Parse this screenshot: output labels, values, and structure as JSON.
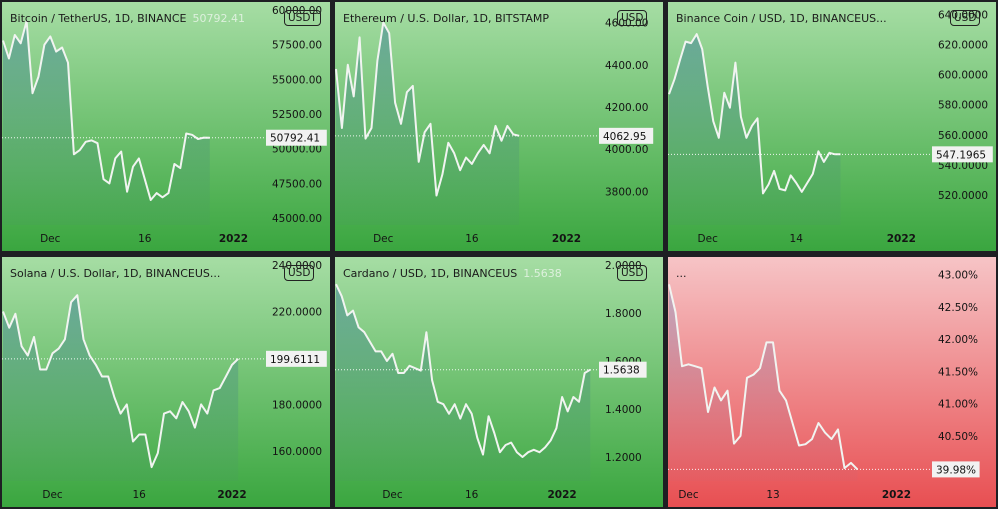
{
  "chart_data": [
    {
      "type": "area",
      "title": "Bitcoin / TetherUS, 1D, BINANCE",
      "price_label": "50792.41",
      "currency": "USDT",
      "current_tag": "50792.41",
      "theme": "green",
      "ylim": [
        44500,
        60000
      ],
      "yticks": [
        {
          "v": 60000,
          "l": "60000.00"
        },
        {
          "v": 57500,
          "l": "57500.00"
        },
        {
          "v": 55000,
          "l": "55000.00"
        },
        {
          "v": 52500,
          "l": "52500.00"
        },
        {
          "v": 50000,
          "l": "50000.00"
        },
        {
          "v": 47500,
          "l": "47500.00"
        },
        {
          "v": 45000,
          "l": "45000.00"
        }
      ],
      "xticks": [
        {
          "i": 8,
          "l": "Dec",
          "bold": false
        },
        {
          "i": 24,
          "l": "16",
          "bold": false
        },
        {
          "i": 39,
          "l": "2022",
          "bold": true
        }
      ],
      "n_slots": 45,
      "values": [
        57800,
        56500,
        58200,
        57600,
        59200,
        54000,
        55200,
        57500,
        58100,
        57000,
        57300,
        56200,
        49600,
        49900,
        50500,
        50600,
        50400,
        47800,
        47500,
        49300,
        49800,
        46900,
        48700,
        49300,
        47800,
        46300,
        46800,
        46500,
        46800,
        48900,
        48600,
        51100,
        51000,
        50700,
        50800,
        50792
      ]
    },
    {
      "type": "area",
      "title": "Ethereum / U.S. Dollar, 1D, BITSTAMP",
      "price_label": "",
      "currency": "USD",
      "current_tag": "4062.95",
      "theme": "green",
      "ylim": [
        3640,
        4660
      ],
      "yticks": [
        {
          "v": 4600,
          "l": "4600.00"
        },
        {
          "v": 4400,
          "l": "4400.00"
        },
        {
          "v": 4200,
          "l": "4200.00"
        },
        {
          "v": 4000,
          "l": "4000.00"
        },
        {
          "v": 3800,
          "l": "3800.00"
        }
      ],
      "xticks": [
        {
          "i": 8,
          "l": "Dec",
          "bold": false
        },
        {
          "i": 23,
          "l": "16",
          "bold": false
        },
        {
          "i": 39,
          "l": "2022",
          "bold": true
        }
      ],
      "n_slots": 45,
      "values": [
        4380,
        4100,
        4400,
        4250,
        4530,
        4050,
        4100,
        4420,
        4600,
        4550,
        4220,
        4120,
        4270,
        4300,
        3940,
        4080,
        4120,
        3780,
        3880,
        4030,
        3980,
        3900,
        3960,
        3930,
        3980,
        4020,
        3980,
        4110,
        4040,
        4110,
        4070,
        4063
      ]
    },
    {
      "type": "area",
      "title": "Binance Coin / USD, 1D, BINANCEUS...",
      "price_label": "",
      "currency": "USD",
      "current_tag": "547.1965",
      "theme": "green",
      "ylim": [
        500,
        643
      ],
      "yticks": [
        {
          "v": 640,
          "l": "640.0000"
        },
        {
          "v": 620,
          "l": "620.0000"
        },
        {
          "v": 600,
          "l": "600.0000"
        },
        {
          "v": 580,
          "l": "580.0000"
        },
        {
          "v": 560,
          "l": "560.0000"
        },
        {
          "v": 540,
          "l": "540.0000"
        },
        {
          "v": 520,
          "l": "520.0000"
        }
      ],
      "xticks": [
        {
          "i": 7,
          "l": "Dec",
          "bold": false
        },
        {
          "i": 23,
          "l": "14",
          "bold": false
        },
        {
          "i": 42,
          "l": "2022",
          "bold": true
        }
      ],
      "n_slots": 48,
      "values": [
        587,
        597,
        610,
        622,
        621,
        627,
        617,
        592,
        569,
        558,
        588,
        578,
        608,
        572,
        558,
        566,
        571,
        521,
        527,
        536,
        524,
        523,
        533,
        528,
        522,
        528,
        534,
        549,
        542,
        548,
        547,
        547
      ]
    },
    {
      "type": "area",
      "title": "Solana / U.S. Dollar, 1D, BINANCEUS...",
      "price_label": "",
      "currency": "USD",
      "current_tag": "199.6111",
      "theme": "green",
      "ylim": [
        147,
        240
      ],
      "yticks": [
        {
          "v": 240,
          "l": "240.0000"
        },
        {
          "v": 220,
          "l": "220.0000"
        },
        {
          "v": 180,
          "l": "180.0000"
        },
        {
          "v": 160,
          "l": "160.0000"
        }
      ],
      "xticks": [
        {
          "i": 8,
          "l": "Dec",
          "bold": false
        },
        {
          "i": 22,
          "l": "16",
          "bold": false
        },
        {
          "i": 37,
          "l": "2022",
          "bold": true
        }
      ],
      "n_slots": 43,
      "values": [
        220,
        213,
        219,
        205,
        201,
        209,
        195,
        195,
        202,
        204,
        208,
        224,
        227,
        208,
        201,
        197,
        192,
        192,
        183,
        176,
        180,
        164,
        167,
        167,
        153,
        159,
        176,
        177,
        174,
        181,
        177,
        170,
        180,
        176,
        186,
        187,
        192,
        197,
        199.6
      ]
    },
    {
      "type": "area",
      "title": "Cardano / USD, 1D, BINANCEUS",
      "price_label": "1.5638",
      "currency": "USD",
      "current_tag": "1.5638",
      "theme": "green",
      "ylim": [
        1.1,
        2.0
      ],
      "yticks": [
        {
          "v": 2.0,
          "l": "2.0000"
        },
        {
          "v": 1.8,
          "l": "1.8000"
        },
        {
          "v": 1.6,
          "l": "1.6000"
        },
        {
          "v": 1.4,
          "l": "1.4000"
        },
        {
          "v": 1.2,
          "l": "1.2000"
        }
      ],
      "xticks": [
        {
          "i": 10,
          "l": "Dec",
          "bold": false
        },
        {
          "i": 24,
          "l": "16",
          "bold": false
        },
        {
          "i": 40,
          "l": "2022",
          "bold": true
        }
      ],
      "n_slots": 47,
      "values": [
        1.92,
        1.87,
        1.79,
        1.81,
        1.74,
        1.72,
        1.68,
        1.64,
        1.64,
        1.6,
        1.63,
        1.55,
        1.55,
        1.58,
        1.57,
        1.56,
        1.72,
        1.52,
        1.43,
        1.42,
        1.38,
        1.42,
        1.36,
        1.42,
        1.38,
        1.28,
        1.21,
        1.37,
        1.3,
        1.22,
        1.25,
        1.26,
        1.22,
        1.2,
        1.22,
        1.23,
        1.22,
        1.24,
        1.27,
        1.32,
        1.45,
        1.39,
        1.45,
        1.43,
        1.55,
        1.5638
      ]
    },
    {
      "type": "area",
      "title": "...",
      "price_label": "",
      "currency": "",
      "current_tag": "39.98%",
      "theme": "red",
      "ylim": [
        39.8,
        43.15
      ],
      "yticks": [
        {
          "v": 43.0,
          "l": "43.00%"
        },
        {
          "v": 42.5,
          "l": "42.50%"
        },
        {
          "v": 42.0,
          "l": "42.00%"
        },
        {
          "v": 41.5,
          "l": "41.50%"
        },
        {
          "v": 41.0,
          "l": "41.00%"
        },
        {
          "v": 40.5,
          "l": "40.50%"
        },
        {
          "v": 40.0,
          "l": "40.00%"
        }
      ],
      "xticks": [
        {
          "i": 3,
          "l": "Dec",
          "bold": false
        },
        {
          "i": 16,
          "l": "13",
          "bold": false
        },
        {
          "i": 35,
          "l": "2022",
          "bold": true
        }
      ],
      "n_slots": 41,
      "values": [
        42.85,
        42.42,
        41.58,
        41.61,
        41.58,
        41.55,
        40.87,
        41.25,
        41.05,
        41.2,
        40.38,
        40.5,
        41.4,
        41.45,
        41.55,
        41.95,
        41.95,
        41.2,
        41.05,
        40.7,
        40.35,
        40.37,
        40.45,
        40.7,
        40.55,
        40.45,
        40.6,
        40.0,
        40.08,
        39.98
      ]
    }
  ]
}
